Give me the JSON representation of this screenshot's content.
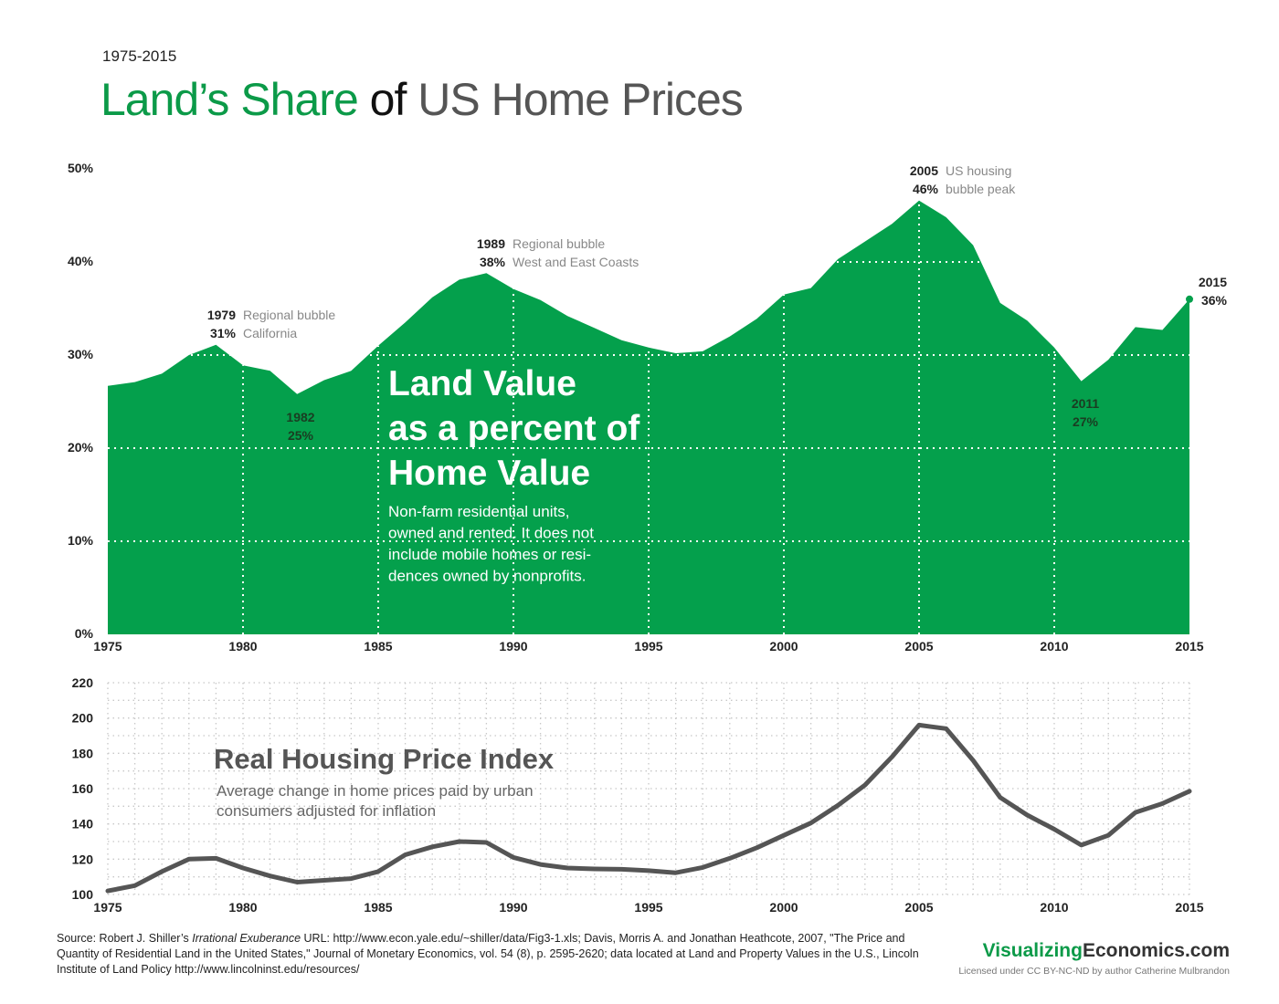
{
  "header": {
    "subtitle": "1975-2015",
    "title_part1": "Land’s Share",
    "title_part2": "of",
    "title_part3": "US Home Prices"
  },
  "colors": {
    "land_fill": "#04a04c",
    "index_line": "#555555",
    "accent_green": "#0b9a48"
  },
  "chart_data": [
    {
      "type": "area",
      "title": "Land Value as a percent of Home Value",
      "description": "Non-farm residential units, owned and rented.  It does not include mobile homes or residences owned by nonprofits.",
      "x": [
        1975,
        1976,
        1977,
        1978,
        1979,
        1980,
        1981,
        1982,
        1983,
        1984,
        1985,
        1986,
        1987,
        1988,
        1989,
        1990,
        1991,
        1992,
        1993,
        1994,
        1995,
        1996,
        1997,
        1998,
        1999,
        2000,
        2001,
        2002,
        2003,
        2004,
        2005,
        2006,
        2007,
        2008,
        2009,
        2010,
        2011,
        2012,
        2013,
        2014,
        2015
      ],
      "values": [
        26.7,
        27.1,
        28.0,
        30.0,
        31.1,
        28.9,
        28.3,
        25.8,
        27.3,
        28.3,
        31.0,
        33.5,
        36.2,
        38.1,
        38.8,
        37.1,
        35.9,
        34.2,
        32.9,
        31.6,
        30.8,
        30.2,
        30.4,
        32.0,
        33.9,
        36.5,
        37.2,
        40.3,
        42.2,
        44.1,
        46.6,
        44.8,
        41.8,
        35.6,
        33.7,
        30.8,
        27.2,
        29.5,
        33.0,
        32.7,
        36.0
      ],
      "x_ticks": [
        "1975",
        "1980",
        "1985",
        "1990",
        "1995",
        "2000",
        "2005",
        "2010",
        "2015"
      ],
      "y_ticks": [
        "0%",
        "10%",
        "20%",
        "30%",
        "40%",
        "50%"
      ],
      "ylim": [
        0,
        50
      ],
      "xlim": [
        1975,
        2015
      ],
      "grid": true,
      "annotations": [
        {
          "year": "1979",
          "value": "31%",
          "note1": "Regional bubble",
          "note2": "California"
        },
        {
          "year": "1982",
          "value": "25%"
        },
        {
          "year": "1989",
          "value": "38%",
          "note1": "Regional bubble",
          "note2": "West and East Coasts"
        },
        {
          "year": "2005",
          "value": "46%",
          "note1": "US housing",
          "note2": "bubble peak"
        },
        {
          "year": "2011",
          "value": "27%"
        },
        {
          "year": "2015",
          "value": "36%"
        }
      ]
    },
    {
      "type": "line",
      "title": "Real Housing Price Index",
      "description": "Average change in home prices paid by urban consumers adjusted for inflation",
      "x": [
        1975,
        1976,
        1977,
        1978,
        1979,
        1980,
        1981,
        1982,
        1983,
        1984,
        1985,
        1986,
        1987,
        1988,
        1989,
        1990,
        1991,
        1992,
        1993,
        1994,
        1995,
        1996,
        1997,
        1998,
        1999,
        2000,
        2001,
        2002,
        2003,
        2004,
        2005,
        2006,
        2007,
        2008,
        2009,
        2010,
        2011,
        2012,
        2013,
        2014,
        2015
      ],
      "values": [
        102,
        105,
        113,
        120,
        120.5,
        115,
        110.5,
        107,
        108,
        109,
        113,
        122.5,
        127,
        130,
        129.5,
        121,
        117,
        115,
        114.5,
        114.3,
        113.5,
        112.3,
        115.3,
        120.5,
        126.5,
        133.5,
        140.5,
        150.5,
        162,
        178,
        196,
        194,
        176,
        155,
        145,
        137,
        128,
        133.5,
        146.5,
        151.5,
        158.5
      ],
      "x_ticks": [
        "1975",
        "1980",
        "1985",
        "1990",
        "1995",
        "2000",
        "2005",
        "2010",
        "2015"
      ],
      "y_ticks": [
        "100",
        "120",
        "140",
        "160",
        "180",
        "200",
        "220"
      ],
      "ylim": [
        100,
        220
      ],
      "xlim": [
        1975,
        2015
      ],
      "grid": true
    }
  ],
  "footer": {
    "source_prefix": "Source: Robert J. Shiller’s ",
    "source_italic": "Irrational Exuberance",
    "source_rest": " URL: http://www.econ.yale.edu/~shiller/data/Fig3-1.xls; Davis, Morris A. and Jonathan Heathcote, 2007, \"The Price and Quantity of Residential Land in the United States,\" Journal of Monetary Economics, vol. 54 (8), p. 2595-2620; data located at Land and Property Values in the U.S., Lincoln Institute of Land Policy http://www.lincolninst.edu/resources/",
    "brand_green": "Visualizing",
    "brand_dark": "Economics.com",
    "license": "Licensed under CC BY-NC-ND by author Catherine Mulbrandon"
  }
}
